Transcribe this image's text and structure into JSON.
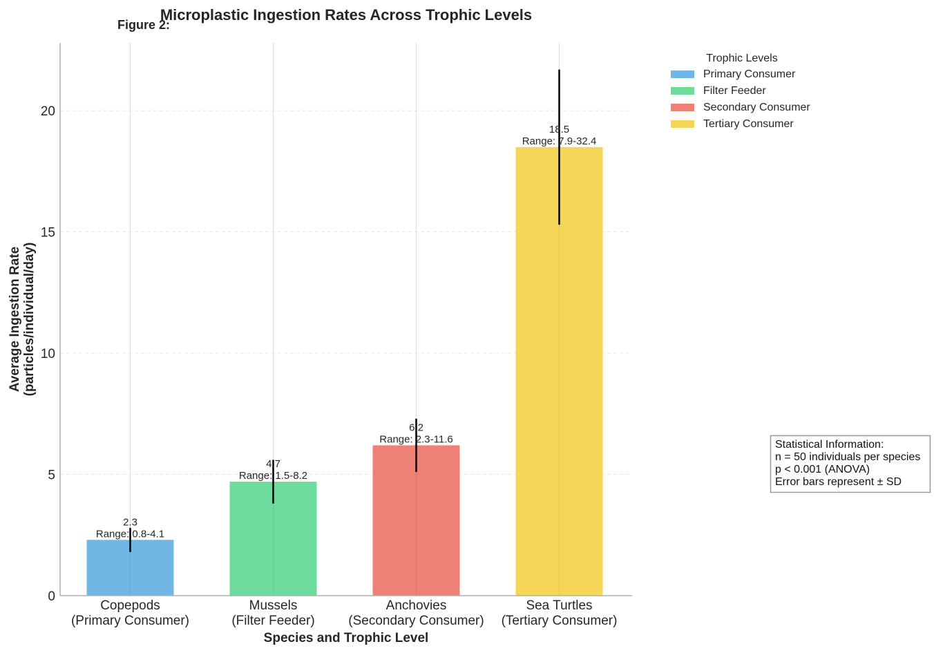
{
  "chart_data": {
    "type": "bar",
    "title": "Microplastic Ingestion Rates Across Trophic Levels",
    "figure_label": "Figure 2:",
    "xlabel": "Species and Trophic Level",
    "ylabel_lines": [
      "Average Ingestion Rate",
      "(particles/individual/day)"
    ],
    "ylim": [
      0,
      22.8
    ],
    "yticks": [
      0,
      5,
      10,
      15,
      20
    ],
    "grid": true,
    "legend_placement": "outside-top-right",
    "categories": [
      [
        "Copepods",
        "(Primary Consumer)"
      ],
      [
        "Mussels",
        "(Filter Feeder)"
      ],
      [
        "Anchovies",
        "(Secondary Consumer)"
      ],
      [
        "Sea Turtles",
        "(Tertiary Consumer)"
      ]
    ],
    "values": [
      2.3,
      4.7,
      6.2,
      18.5
    ],
    "errors": [
      0.5,
      0.9,
      1.1,
      3.2
    ],
    "value_labels": [
      "2.3",
      "4.7",
      "6.2",
      "18.5"
    ],
    "range_labels": [
      "Range: 0.8-4.1",
      "Range: 1.5-8.2",
      "Range: 2.3-11.6",
      "Range: 7.9-32.4"
    ],
    "colors": [
      "#5DADE2",
      "#58D68D",
      "#EC7063",
      "#F4D03F"
    ],
    "legend": {
      "title": "Trophic Levels",
      "entries": [
        "Primary Consumer",
        "Filter Feeder",
        "Secondary Consumer",
        "Tertiary Consumer"
      ]
    },
    "stats_box": [
      "Statistical Information:",
      "n = 50 individuals per species",
      "p < 0.001 (ANOVA)",
      "Error bars represent ± SD"
    ]
  }
}
